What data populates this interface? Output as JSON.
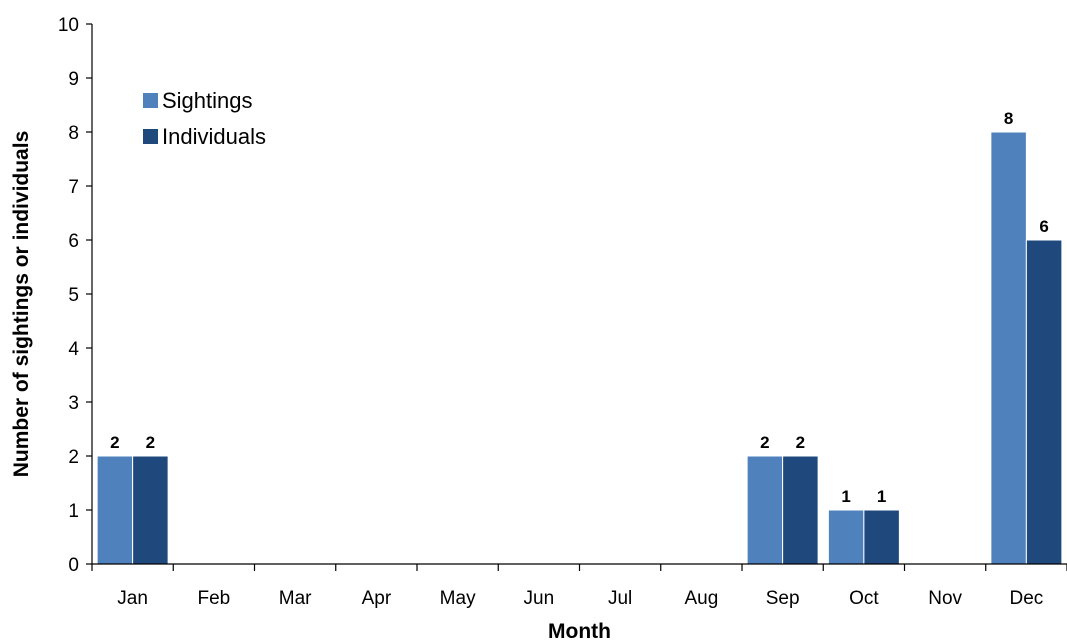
{
  "chart_data": {
    "type": "bar",
    "categories": [
      "Jan",
      "Feb",
      "Mar",
      "Apr",
      "May",
      "Jun",
      "Jul",
      "Aug",
      "Sep",
      "Oct",
      "Nov",
      "Dec"
    ],
    "series": [
      {
        "name": "Sightings",
        "color": "#4f81bd",
        "values": [
          2,
          0,
          0,
          0,
          0,
          0,
          0,
          0,
          2,
          1,
          0,
          8
        ]
      },
      {
        "name": "Individuals",
        "color": "#1f497d",
        "values": [
          2,
          0,
          0,
          0,
          0,
          0,
          0,
          0,
          2,
          1,
          0,
          6
        ]
      }
    ],
    "xlabel": "Month",
    "ylabel": "Number of sightings or individuals",
    "ylim": [
      0,
      10
    ],
    "yticks": [
      0,
      1,
      2,
      3,
      4,
      5,
      6,
      7,
      8,
      9,
      10
    ],
    "grid": false,
    "legend_position": "top-left"
  }
}
